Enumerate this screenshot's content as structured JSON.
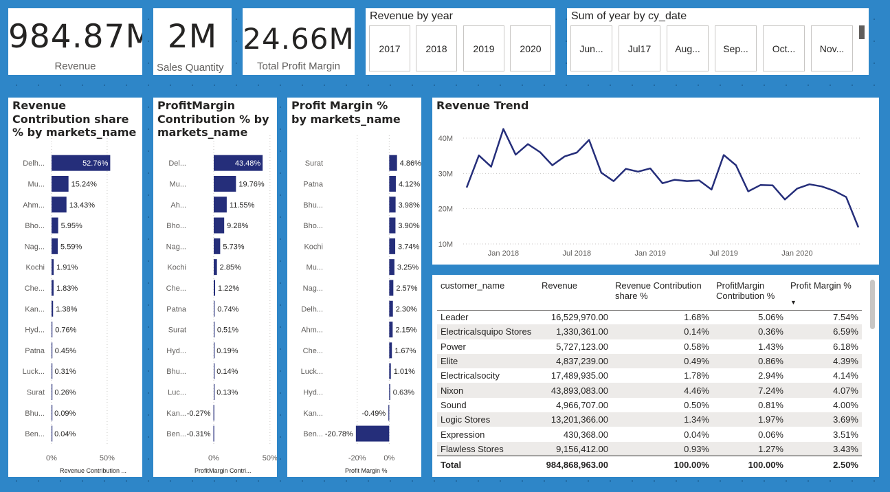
{
  "kpis": [
    {
      "value": "984.87M",
      "label": "Revenue"
    },
    {
      "value": "2M",
      "label": "Sales Quantity"
    },
    {
      "value": "24.66M",
      "label": "Total Profit Margin"
    }
  ],
  "year_slicer": {
    "title": "Revenue by year",
    "items": [
      "2017",
      "2018",
      "2019",
      "2020"
    ]
  },
  "date_slicer": {
    "title": "Sum of year by cy_date",
    "items": [
      "Jun...",
      "Jul17",
      "Aug...",
      "Sep...",
      "Oct...",
      "Nov..."
    ]
  },
  "colors": {
    "accent": "#252E7A",
    "background": "#2E86C8"
  },
  "chart_data": [
    {
      "type": "bar",
      "title": "Revenue Contribution share % by markets_name",
      "xlabel": "Revenue Contribution ...",
      "categories": [
        "Delh...",
        "Mu...",
        "Ahm...",
        "Bho...",
        "Nag...",
        "Kochi",
        "Che...",
        "Kan...",
        "Hyd...",
        "Patna",
        "Luck...",
        "Surat",
        "Bhu...",
        "Ben..."
      ],
      "values": [
        52.76,
        15.24,
        13.43,
        5.95,
        5.59,
        1.91,
        1.83,
        1.38,
        0.76,
        0.45,
        0.31,
        0.26,
        0.09,
        0.04
      ],
      "labels": [
        "52.76%",
        "15.24%",
        "13.43%",
        "5.95%",
        "5.59%",
        "1.91%",
        "1.83%",
        "1.38%",
        "0.76%",
        "0.45%",
        "0.31%",
        "0.26%",
        "0.09%",
        "0.04%"
      ],
      "xlim": [
        0,
        55
      ],
      "ticks": [
        {
          "v": 0,
          "t": "0%"
        },
        {
          "v": 50,
          "t": "50%"
        }
      ]
    },
    {
      "type": "bar",
      "title": "ProfitMargin Contribution % by markets_name",
      "xlabel": "ProfitMargin Contri...",
      "categories": [
        "Del...",
        "Mu...",
        "Ah...",
        "Bho...",
        "Nag...",
        "Kochi",
        "Che...",
        "Patna",
        "Surat",
        "Hyd...",
        "Bhu...",
        "Luc...",
        "Kan...",
        "Ben..."
      ],
      "values": [
        43.48,
        19.76,
        11.55,
        9.28,
        5.73,
        2.85,
        1.22,
        0.74,
        0.51,
        0.19,
        0.14,
        0.13,
        -0.27,
        -0.31
      ],
      "labels": [
        "43.48%",
        "19.76%",
        "11.55%",
        "9.28%",
        "5.73%",
        "2.85%",
        "1.22%",
        "0.74%",
        "0.51%",
        "0.19%",
        "0.14%",
        "0.13%",
        "-0.27%",
        "-0.31%"
      ],
      "xlim": [
        0,
        55
      ],
      "ticks": [
        {
          "v": 0,
          "t": "0%"
        },
        {
          "v": 50,
          "t": "50%"
        }
      ]
    },
    {
      "type": "bar",
      "title": "Profit Margin % by markets_name",
      "xlabel": "Profit Margin %",
      "categories": [
        "Surat",
        "Patna",
        "Bhu...",
        "Bho...",
        "Kochi",
        "Mu...",
        "Nag...",
        "Delh...",
        "Ahm...",
        "Che...",
        "Luck...",
        "Hyd...",
        "Kan...",
        "Ben..."
      ],
      "values": [
        4.86,
        4.12,
        3.98,
        3.9,
        3.74,
        3.25,
        2.57,
        2.3,
        2.15,
        1.67,
        1.01,
        0.63,
        -0.49,
        -20.78
      ],
      "labels": [
        "4.86%",
        "4.12%",
        "3.98%",
        "3.90%",
        "3.74%",
        "3.25%",
        "2.57%",
        "2.30%",
        "2.15%",
        "1.67%",
        "1.01%",
        "0.63%",
        "-0.49%",
        "-20.78%"
      ],
      "xlim": [
        -22,
        5
      ],
      "ticks": [
        {
          "v": -20,
          "t": "-20%"
        },
        {
          "v": 0,
          "t": "0%"
        }
      ]
    },
    {
      "type": "line",
      "title": "Revenue Trend",
      "x": [
        "2017-10",
        "2017-11",
        "2017-12",
        "2018-01",
        "2018-02",
        "2018-03",
        "2018-04",
        "2018-05",
        "2018-06",
        "2018-07",
        "2018-08",
        "2018-09",
        "2018-10",
        "2018-11",
        "2018-12",
        "2019-01",
        "2019-02",
        "2019-03",
        "2019-04",
        "2019-05",
        "2019-06",
        "2019-07",
        "2019-08",
        "2019-09",
        "2019-10",
        "2019-11",
        "2019-12",
        "2020-01",
        "2020-02",
        "2020-03",
        "2020-04",
        "2020-05",
        "2020-06"
      ],
      "values": [
        26.0,
        35.1,
        31.9,
        42.6,
        35.3,
        38.3,
        36.0,
        32.3,
        34.8,
        35.9,
        39.5,
        30.2,
        27.8,
        31.3,
        30.5,
        31.4,
        27.2,
        28.2,
        27.8,
        28.0,
        25.4,
        35.2,
        32.3,
        24.9,
        26.7,
        26.6,
        22.6,
        25.7,
        26.9,
        26.3,
        25.1,
        23.3,
        14.7
      ],
      "ylim": [
        10,
        45
      ],
      "yticks": [
        {
          "v": 10,
          "t": "10M"
        },
        {
          "v": 20,
          "t": "20M"
        },
        {
          "v": 30,
          "t": "30M"
        },
        {
          "v": 40,
          "t": "40M"
        }
      ],
      "xticks": [
        {
          "i": 3,
          "t": "Jan 2018"
        },
        {
          "i": 9,
          "t": "Jul 2018"
        },
        {
          "i": 15,
          "t": "Jan 2019"
        },
        {
          "i": 21,
          "t": "Jul 2019"
        },
        {
          "i": 27,
          "t": "Jan 2020"
        }
      ]
    }
  ],
  "table": {
    "columns": [
      "customer_name",
      "Revenue",
      "Revenue Contribution share %",
      "ProfitMargin Contribution %",
      "Profit Margin %"
    ],
    "rows": [
      [
        "Leader",
        "16,529,970.00",
        "1.68%",
        "5.06%",
        "7.54%"
      ],
      [
        "Electricalsquipo Stores",
        "1,330,361.00",
        "0.14%",
        "0.36%",
        "6.59%"
      ],
      [
        "Power",
        "5,727,123.00",
        "0.58%",
        "1.43%",
        "6.18%"
      ],
      [
        "Elite",
        "4,837,239.00",
        "0.49%",
        "0.86%",
        "4.39%"
      ],
      [
        "Electricalsocity",
        "17,489,935.00",
        "1.78%",
        "2.94%",
        "4.14%"
      ],
      [
        "Nixon",
        "43,893,083.00",
        "4.46%",
        "7.24%",
        "4.07%"
      ],
      [
        "Sound",
        "4,966,707.00",
        "0.50%",
        "0.81%",
        "4.00%"
      ],
      [
        "Logic Stores",
        "13,201,366.00",
        "1.34%",
        "1.97%",
        "3.69%"
      ],
      [
        "Expression",
        "430,368.00",
        "0.04%",
        "0.06%",
        "3.51%"
      ],
      [
        "Flawless Stores",
        "9,156,412.00",
        "0.93%",
        "1.27%",
        "3.43%"
      ]
    ],
    "total": [
      "Total",
      "984,868,963.00",
      "100.00%",
      "100.00%",
      "2.50%"
    ]
  }
}
